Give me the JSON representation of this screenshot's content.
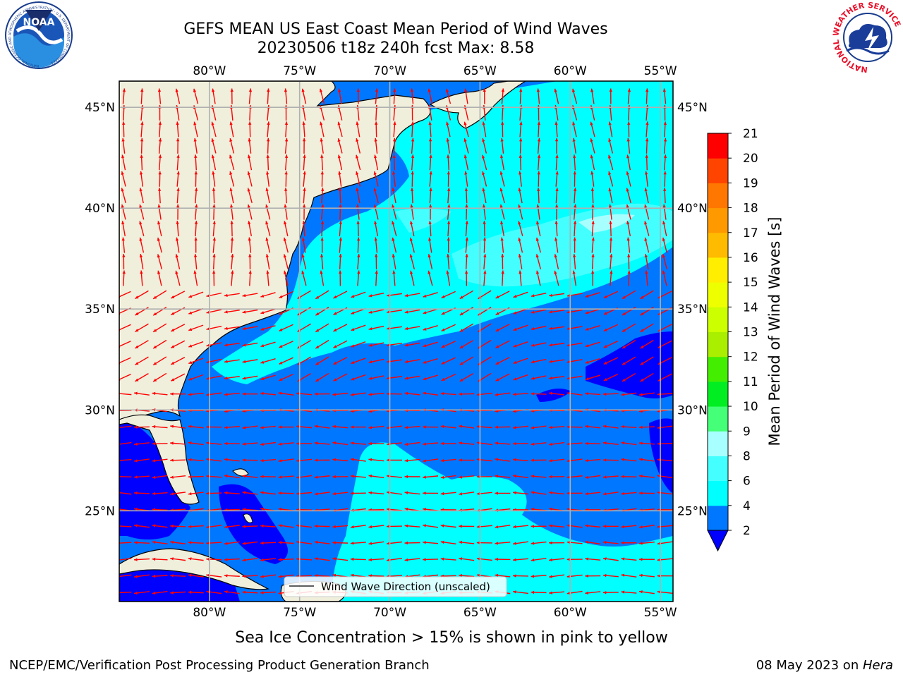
{
  "title": {
    "line1": "GEFS MEAN US East Coast Mean Period of Wind Waves",
    "line2": "20230506 t18z 240h fcst   Max: 8.58"
  },
  "map": {
    "lon_range": [
      -85,
      -54.3
    ],
    "lat_range": [
      20.5,
      46.3
    ],
    "lon_ticks": [
      {
        "value": -80,
        "label": "80°W"
      },
      {
        "value": -75,
        "label": "75°W"
      },
      {
        "value": -70,
        "label": "70°W"
      },
      {
        "value": -65,
        "label": "65°W"
      },
      {
        "value": -60,
        "label": "60°W"
      },
      {
        "value": -55,
        "label": "55°W"
      }
    ],
    "lat_ticks": [
      {
        "value": 45,
        "label": "45°N"
      },
      {
        "value": 40,
        "label": "40°N"
      },
      {
        "value": 35,
        "label": "35°N"
      },
      {
        "value": 30,
        "label": "30°N"
      },
      {
        "value": 25,
        "label": "25°N"
      }
    ],
    "grid": true,
    "land_color": "#efefdc",
    "arrow_color": "#ff0000",
    "legend_label": "Wind Wave Direction (unscaled)",
    "legend_placement": "bottom-center"
  },
  "colorbar": {
    "label": "Mean Period of Wind Waves [s]",
    "extend": "min",
    "under_color": "#0000ff",
    "levels": [
      {
        "from": 2,
        "to": 4,
        "color": "#0077ff"
      },
      {
        "from": 4,
        "to": 6,
        "color": "#00ffff"
      },
      {
        "from": 6,
        "to": 8,
        "color": "#44ffff"
      },
      {
        "from": 8,
        "to": 9,
        "color": "#a8ffff"
      },
      {
        "from": 9,
        "to": 10,
        "color": "#44ff77"
      },
      {
        "from": 10,
        "to": 11,
        "color": "#00ee22"
      },
      {
        "from": 11,
        "to": 12,
        "color": "#44ee00"
      },
      {
        "from": 12,
        "to": 13,
        "color": "#aaee00"
      },
      {
        "from": 13,
        "to": 14,
        "color": "#ccff00"
      },
      {
        "from": 14,
        "to": 15,
        "color": "#eeff00"
      },
      {
        "from": 15,
        "to": 16,
        "color": "#ffee00"
      },
      {
        "from": 16,
        "to": 17,
        "color": "#ffbb00"
      },
      {
        "from": 17,
        "to": 18,
        "color": "#ff9900"
      },
      {
        "from": 18,
        "to": 19,
        "color": "#ff7700"
      },
      {
        "from": 19,
        "to": 20,
        "color": "#ff4400"
      },
      {
        "from": 20,
        "to": 21,
        "color": "#ff0000"
      }
    ],
    "tick_labels": [
      "2",
      "4",
      "6",
      "8",
      "9",
      "10",
      "11",
      "12",
      "13",
      "14",
      "15",
      "16",
      "17",
      "18",
      "19",
      "20",
      "21"
    ]
  },
  "notes": {
    "sea_ice": "Sea Ice Concentration > 15% is shown in pink to yellow"
  },
  "footer": {
    "left": "NCEP/EMC/Verification Post Processing Product Generation Branch",
    "right_date": "08 May 2023 on ",
    "right_host": "Hera"
  },
  "logos": {
    "noaa_text": "NOAA",
    "noaa_ring": "NATIONAL OCEANIC AND ATMOSPHERIC ADMINISTRATION · U.S. DEPARTMENT OF COMMERCE",
    "nws_ring": "NATIONAL WEATHER SERVICE"
  }
}
